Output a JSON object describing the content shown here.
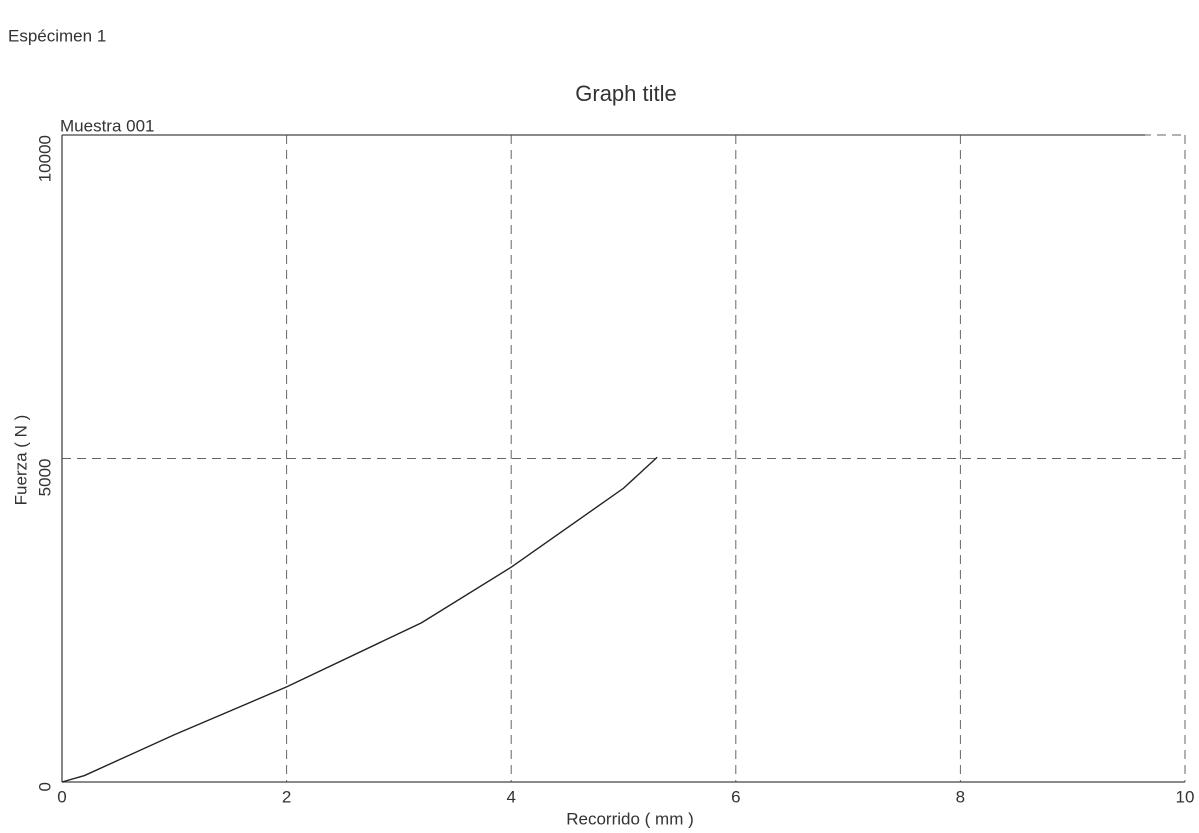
{
  "chart_data": {
    "type": "line",
    "specimen": "Espécimen 1",
    "title": "Graph title",
    "x_label": "Recorrido ( mm )",
    "y_label": "Fuerza ( N )",
    "series": [
      {
        "name": "Muestra 001",
        "color": "#222222",
        "x": [
          0,
          0.2,
          1,
          2,
          3.2,
          4,
          5,
          5.3
        ],
        "values": [
          0,
          100,
          730,
          1470,
          2460,
          3320,
          4540,
          5020
        ]
      }
    ],
    "xlim": [
      0,
      10
    ],
    "xticks": [
      0,
      2,
      4,
      6,
      8,
      10
    ],
    "ylim": [
      0,
      10000
    ],
    "yticks": [
      0,
      5000,
      10000
    ],
    "grid": true
  }
}
